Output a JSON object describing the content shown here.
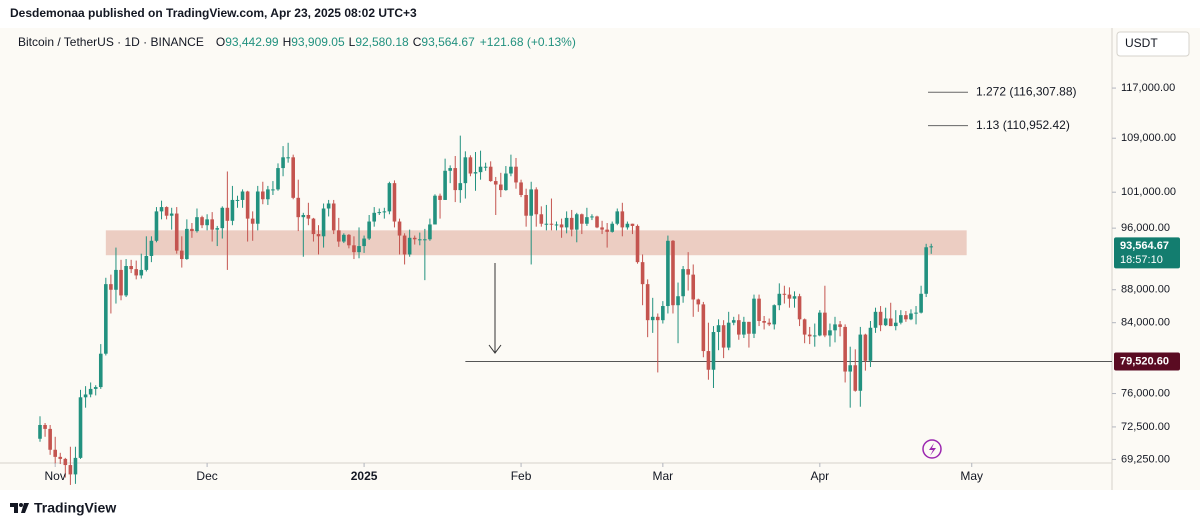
{
  "top_bar": "Desdemonaa published on TradingView.com, Apr 23, 2025 08:02 UTC+3",
  "footer": "TradingView",
  "chart_data": {
    "type": "candlestick",
    "symbol": "Bitcoin / TetherUS · 1D · BINANCE",
    "ohlc": [
      {
        "key": "O",
        "label": "93,442.99"
      },
      {
        "key": "H",
        "label": "93,909.05"
      },
      {
        "key": "L",
        "label": "92,580.18"
      },
      {
        "key": "C",
        "label": "93,564.67"
      }
    ],
    "change": "+121.68 (+0.13%)",
    "currency": "USDT",
    "log": true,
    "up_color": "#22917f",
    "down_color": "#c4544f",
    "ylim": [
      68900,
      127000
    ],
    "yticks": [
      {
        "value": 117000,
        "label": "117,000.00"
      },
      {
        "value": 109000,
        "label": "109,000.00"
      },
      {
        "value": 101000,
        "label": "101,000.00"
      },
      {
        "value": 96000,
        "label": "96,000.00"
      },
      {
        "value": 88000,
        "label": "88,000.00"
      },
      {
        "value": 84000,
        "label": "84,000.00"
      },
      {
        "value": 76000,
        "label": "76,000.00"
      },
      {
        "value": 72500,
        "label": "72,500.00"
      },
      {
        "value": 69250,
        "label": "69,250.00"
      }
    ],
    "xlim": [
      -7.9,
      211.7
    ],
    "xticks": [
      {
        "value": 3,
        "label": "Nov"
      },
      {
        "value": 33,
        "label": "Dec"
      },
      {
        "value": 64,
        "label": "2025"
      },
      {
        "value": 95,
        "label": "Feb"
      },
      {
        "value": 123,
        "label": "Mar"
      },
      {
        "value": 154,
        "label": "Apr"
      },
      {
        "value": 184,
        "label": "May"
      }
    ],
    "last_price": {
      "value": 93564.67,
      "label": "93,564.67",
      "countdown": "18:57:10"
    },
    "level": {
      "value": 79520.6,
      "label": "79,520.60",
      "from": 84
    },
    "zone": {
      "low": 92400,
      "high": 95700,
      "from": 13,
      "to": 183
    },
    "fib_levels": [
      {
        "value": 116307.88,
        "label": "1.272 (116,307.88)"
      },
      {
        "value": 110952.42,
        "label": "1.13 (110,952.42)"
      }
    ],
    "candles": [
      [
        71300,
        73600,
        71000,
        72700
      ],
      [
        72700,
        72900,
        71500,
        72300
      ],
      [
        72300,
        72700,
        69700,
        70200
      ],
      [
        70200,
        71500,
        68800,
        69500
      ],
      [
        69500,
        69900,
        68800,
        69300
      ],
      [
        69300,
        69400,
        67500,
        68700
      ],
      [
        68700,
        70500,
        66800,
        67800
      ],
      [
        67800,
        70500,
        66900,
        69400
      ],
      [
        69400,
        76400,
        69300,
        75600
      ],
      [
        75600,
        76800,
        74500,
        75900
      ],
      [
        75900,
        77200,
        75600,
        76500
      ],
      [
        76500,
        76900,
        75800,
        76700
      ],
      [
        76700,
        81500,
        76500,
        80400
      ],
      [
        80400,
        89500,
        80200,
        88700
      ],
      [
        88700,
        89900,
        85100,
        88000
      ],
      [
        88000,
        93400,
        86300,
        90500
      ],
      [
        90500,
        91800,
        86700,
        87300
      ],
      [
        87300,
        91900,
        87100,
        91000
      ],
      [
        91000,
        91800,
        90100,
        90600
      ],
      [
        90600,
        91700,
        89300,
        89800
      ],
      [
        89800,
        92600,
        89400,
        90500
      ],
      [
        90500,
        94900,
        90300,
        92300
      ],
      [
        92300,
        94900,
        91500,
        94300
      ],
      [
        94300,
        98900,
        94100,
        98300
      ],
      [
        98300,
        99800,
        97200,
        98900
      ],
      [
        98900,
        99000,
        97200,
        97700
      ],
      [
        97700,
        98800,
        95800,
        98000
      ],
      [
        98000,
        98900,
        92600,
        93000
      ],
      [
        93000,
        94900,
        90800,
        91900
      ],
      [
        91900,
        97200,
        91800,
        95900
      ],
      [
        95900,
        96700,
        94700,
        95600
      ],
      [
        95600,
        98700,
        95400,
        97500
      ],
      [
        97500,
        97700,
        96000,
        96400
      ],
      [
        96400,
        97900,
        95700,
        97200
      ],
      [
        97200,
        98200,
        94200,
        95800
      ],
      [
        95800,
        96300,
        93600,
        96000
      ],
      [
        96000,
        99000,
        94600,
        98800
      ],
      [
        98800,
        104000,
        90500,
        97000
      ],
      [
        97000,
        101900,
        96400,
        99900
      ],
      [
        99900,
        100500,
        98800,
        99900
      ],
      [
        99900,
        101400,
        98800,
        101100
      ],
      [
        101100,
        101200,
        94200,
        97300
      ],
      [
        97300,
        98300,
        94300,
        96600
      ],
      [
        96600,
        101900,
        95700,
        101100
      ],
      [
        101100,
        102500,
        99300,
        100000
      ],
      [
        100000,
        101900,
        99200,
        101400
      ],
      [
        101400,
        102600,
        100600,
        101400
      ],
      [
        101400,
        105200,
        101200,
        104500
      ],
      [
        104500,
        107800,
        103300,
        106100
      ],
      [
        106100,
        108300,
        105300,
        106100
      ],
      [
        106100,
        106500,
        100000,
        100200
      ],
      [
        100200,
        102800,
        95600,
        97500
      ],
      [
        97500,
        98100,
        92200,
        97800
      ],
      [
        97800,
        99500,
        96400,
        97300
      ],
      [
        97300,
        97400,
        94200,
        95200
      ],
      [
        95200,
        96400,
        92500,
        94900
      ],
      [
        94900,
        99400,
        93400,
        98700
      ],
      [
        98700,
        99900,
        97600,
        99400
      ],
      [
        99400,
        99900,
        95200,
        95700
      ],
      [
        95700,
        97400,
        93500,
        94200
      ],
      [
        94200,
        95300,
        94000,
        95100
      ],
      [
        95100,
        95200,
        93300,
        93700
      ],
      [
        93700,
        94900,
        91900,
        92800
      ],
      [
        92800,
        96100,
        92000,
        93600
      ],
      [
        93600,
        95000,
        92700,
        94600
      ],
      [
        94600,
        97800,
        94400,
        96900
      ],
      [
        96900,
        98900,
        96200,
        98100
      ],
      [
        98100,
        98700,
        97800,
        98200
      ],
      [
        98200,
        98800,
        97300,
        98300
      ],
      [
        98300,
        102500,
        97900,
        102300
      ],
      [
        102300,
        102700,
        96100,
        96900
      ],
      [
        96900,
        97300,
        92500,
        95000
      ],
      [
        95000,
        95300,
        91200,
        92500
      ],
      [
        92500,
        95800,
        92200,
        94700
      ],
      [
        94700,
        95000,
        93800,
        94500
      ],
      [
        94500,
        95400,
        93700,
        94500
      ],
      [
        94500,
        95900,
        89200,
        94500
      ],
      [
        94500,
        97300,
        94300,
        96500
      ],
      [
        96500,
        100700,
        96500,
        100500
      ],
      [
        100500,
        100800,
        97300,
        99900
      ],
      [
        99900,
        105900,
        99900,
        104100
      ],
      [
        104100,
        104900,
        102300,
        104500
      ],
      [
        104500,
        106300,
        99600,
        101300
      ],
      [
        101300,
        109400,
        99500,
        102300
      ],
      [
        102300,
        107000,
        100100,
        106100
      ],
      [
        106100,
        106400,
        103300,
        103700
      ],
      [
        103700,
        106900,
        101200,
        103900
      ],
      [
        103900,
        107100,
        102800,
        104700
      ],
      [
        104700,
        105300,
        104100,
        104700
      ],
      [
        104700,
        105500,
        102500,
        102600
      ],
      [
        102600,
        103200,
        97800,
        102100
      ],
      [
        102100,
        103800,
        100300,
        101300
      ],
      [
        101300,
        104800,
        101200,
        103700
      ],
      [
        103700,
        106500,
        103300,
        104700
      ],
      [
        104700,
        106000,
        101500,
        102400
      ],
      [
        102400,
        102800,
        100300,
        100600
      ],
      [
        100600,
        101500,
        96200,
        97700
      ],
      [
        97700,
        102500,
        91200,
        101400
      ],
      [
        101400,
        101700,
        96200,
        97900
      ],
      [
        97900,
        99000,
        96200,
        96600
      ],
      [
        96600,
        99200,
        95700,
        96600
      ],
      [
        96600,
        100100,
        95700,
        96500
      ],
      [
        96500,
        96900,
        95700,
        96500
      ],
      [
        96500,
        97300,
        94700,
        96100
      ],
      [
        96100,
        98300,
        95300,
        97400
      ],
      [
        97400,
        98500,
        94900,
        95800
      ],
      [
        95800,
        98100,
        94100,
        97900
      ],
      [
        97900,
        98000,
        95200,
        96600
      ],
      [
        96600,
        98800,
        96300,
        97500
      ],
      [
        97500,
        97900,
        97100,
        97600
      ],
      [
        97600,
        97700,
        96000,
        96100
      ],
      [
        96100,
        97000,
        95200,
        95800
      ],
      [
        95800,
        96700,
        93400,
        95500
      ],
      [
        95500,
        96900,
        95400,
        96600
      ],
      [
        96600,
        98700,
        96400,
        98300
      ],
      [
        98300,
        99500,
        94900,
        96100
      ],
      [
        96100,
        96900,
        95800,
        96600
      ],
      [
        96600,
        96600,
        95200,
        96300
      ],
      [
        96300,
        96500,
        91300,
        91500
      ],
      [
        91500,
        92500,
        86100,
        88700
      ],
      [
        88700,
        89300,
        82300,
        84300
      ],
      [
        84300,
        87000,
        82800,
        84700
      ],
      [
        84700,
        85100,
        78300,
        84300
      ],
      [
        84300,
        86600,
        83900,
        86000
      ],
      [
        86000,
        95000,
        85100,
        94300
      ],
      [
        94300,
        94400,
        85100,
        86100
      ],
      [
        86100,
        88900,
        81600,
        87200
      ],
      [
        87200,
        91000,
        86400,
        90600
      ],
      [
        90600,
        92800,
        87900,
        89900
      ],
      [
        89900,
        91200,
        84700,
        86800
      ],
      [
        86800,
        86900,
        85300,
        86200
      ],
      [
        86200,
        86500,
        80000,
        80700
      ],
      [
        80700,
        84000,
        77500,
        78600
      ],
      [
        78600,
        83600,
        76600,
        82900
      ],
      [
        82900,
        84400,
        80800,
        83700
      ],
      [
        83700,
        84300,
        79900,
        81100
      ],
      [
        81100,
        85300,
        80800,
        84000
      ],
      [
        84000,
        84700,
        83700,
        84300
      ],
      [
        84300,
        85000,
        82000,
        82600
      ],
      [
        82600,
        84700,
        82200,
        84100
      ],
      [
        84100,
        84100,
        81100,
        82700
      ],
      [
        82700,
        87400,
        82200,
        86900
      ],
      [
        86900,
        87400,
        83600,
        84200
      ],
      [
        84200,
        84800,
        83200,
        84000
      ],
      [
        84000,
        84500,
        83600,
        83800
      ],
      [
        83800,
        86200,
        83200,
        86100
      ],
      [
        86100,
        88800,
        85500,
        87500
      ],
      [
        87500,
        88500,
        86300,
        87400
      ],
      [
        87400,
        88300,
        85800,
        86900
      ],
      [
        86900,
        87800,
        85800,
        87200
      ],
      [
        87200,
        87500,
        83600,
        84400
      ],
      [
        84400,
        84500,
        81600,
        82600
      ],
      [
        82600,
        83500,
        81500,
        82400
      ],
      [
        82400,
        83900,
        81200,
        82500
      ],
      [
        82500,
        85500,
        82400,
        85200
      ],
      [
        85200,
        88500,
        82300,
        82500
      ],
      [
        82500,
        83900,
        81200,
        83100
      ],
      [
        83100,
        84700,
        81700,
        83800
      ],
      [
        83800,
        84200,
        82400,
        83500
      ],
      [
        83500,
        83800,
        77200,
        78400
      ],
      [
        78400,
        81200,
        74500,
        79100
      ],
      [
        79100,
        80900,
        76200,
        76300
      ],
      [
        76300,
        83500,
        74600,
        82600
      ],
      [
        82600,
        82700,
        78500,
        79600
      ],
      [
        79600,
        84200,
        78900,
        83400
      ],
      [
        83400,
        85800,
        82800,
        85300
      ],
      [
        85300,
        86000,
        83000,
        83700
      ],
      [
        83700,
        85800,
        83600,
        84500
      ],
      [
        84500,
        86400,
        83600,
        83600
      ],
      [
        83600,
        85500,
        83100,
        84000
      ],
      [
        84000,
        85500,
        83800,
        84900
      ],
      [
        84900,
        85400,
        84100,
        84400
      ],
      [
        84400,
        85600,
        84300,
        85100
      ],
      [
        85100,
        86000,
        83800,
        85200
      ],
      [
        85200,
        88500,
        85100,
        87500
      ],
      [
        87500,
        93900,
        87100,
        93442.99
      ],
      [
        93442.99,
        93909.05,
        92580.18,
        93564.67
      ]
    ]
  }
}
